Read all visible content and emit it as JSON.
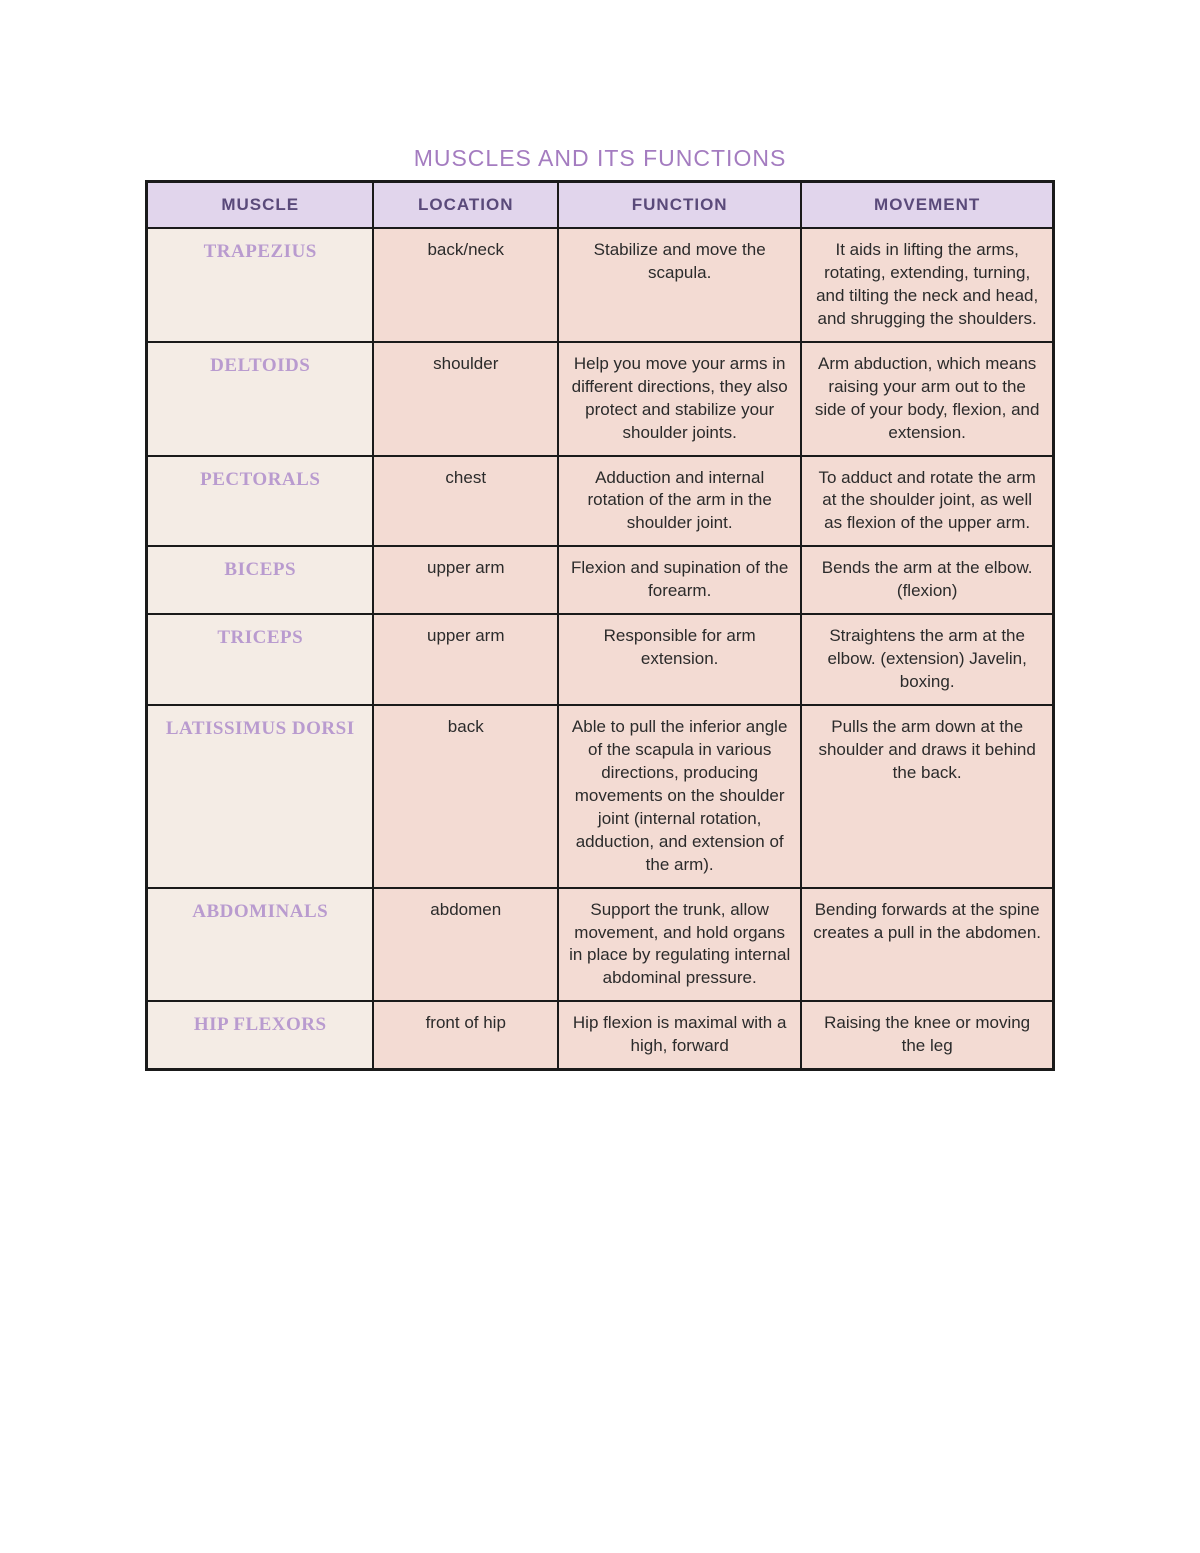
{
  "title": "MUSCLES AND ITS FUNCTIONS",
  "columns": [
    "MUSCLE",
    "LOCATION",
    "FUNCTION",
    "MOVEMENT"
  ],
  "header_bg": "#e1d5ec",
  "header_color": "#5a4a7a",
  "muscle_color": "#b99bcf",
  "cell_bg_alt": [
    "#f4ece5",
    "#f3dbd3"
  ],
  "border_color": "#1a1a1a",
  "rows": [
    {
      "muscle": "TRAPEZIUS",
      "location": "back/neck",
      "function": "Stabilize and move the scapula.",
      "movement": "It aids in lifting the arms, rotating, extending, turning, and tilting the neck and head, and shrugging the shoulders."
    },
    {
      "muscle": "DELTOIDS",
      "location": "shoulder",
      "function": "Help you move your arms in different directions, they also protect and stabilize your shoulder joints.",
      "movement": "Arm abduction, which means raising your arm out to the side of your body, flexion, and extension."
    },
    {
      "muscle": "PECTORALS",
      "location": "chest",
      "function": "Adduction and internal rotation of the arm in the shoulder joint.",
      "movement": "To adduct and rotate the arm at the shoulder joint, as well as flexion of the upper arm."
    },
    {
      "muscle": "BICEPS",
      "location": "upper arm",
      "function": "Flexion and supination of the forearm.",
      "movement": "Bends the arm at the elbow. (flexion)"
    },
    {
      "muscle": "TRICEPS",
      "location": "upper arm",
      "function": "Responsible for arm extension.",
      "movement": "Straightens the arm at the elbow. (extension) Javelin, boxing."
    },
    {
      "muscle": "LATISSIMUS DORSI",
      "location": "back",
      "function": "Able to pull the inferior angle of the scapula in various directions, producing movements on the shoulder joint (internal rotation, adduction, and extension of the arm).",
      "movement": "Pulls the arm down at the shoulder and draws it behind the back."
    },
    {
      "muscle": "ABDOMINALS",
      "location": "abdomen",
      "function": "Support the trunk, allow movement, and hold organs in place by regulating internal abdominal pressure.",
      "movement": "Bending forwards at the spine creates a pull in the abdomen."
    },
    {
      "muscle": "HIP FLEXORS",
      "location": "front of hip",
      "function": "Hip flexion is maximal with a high, forward",
      "movement": "Raising the knee or moving the leg"
    }
  ]
}
